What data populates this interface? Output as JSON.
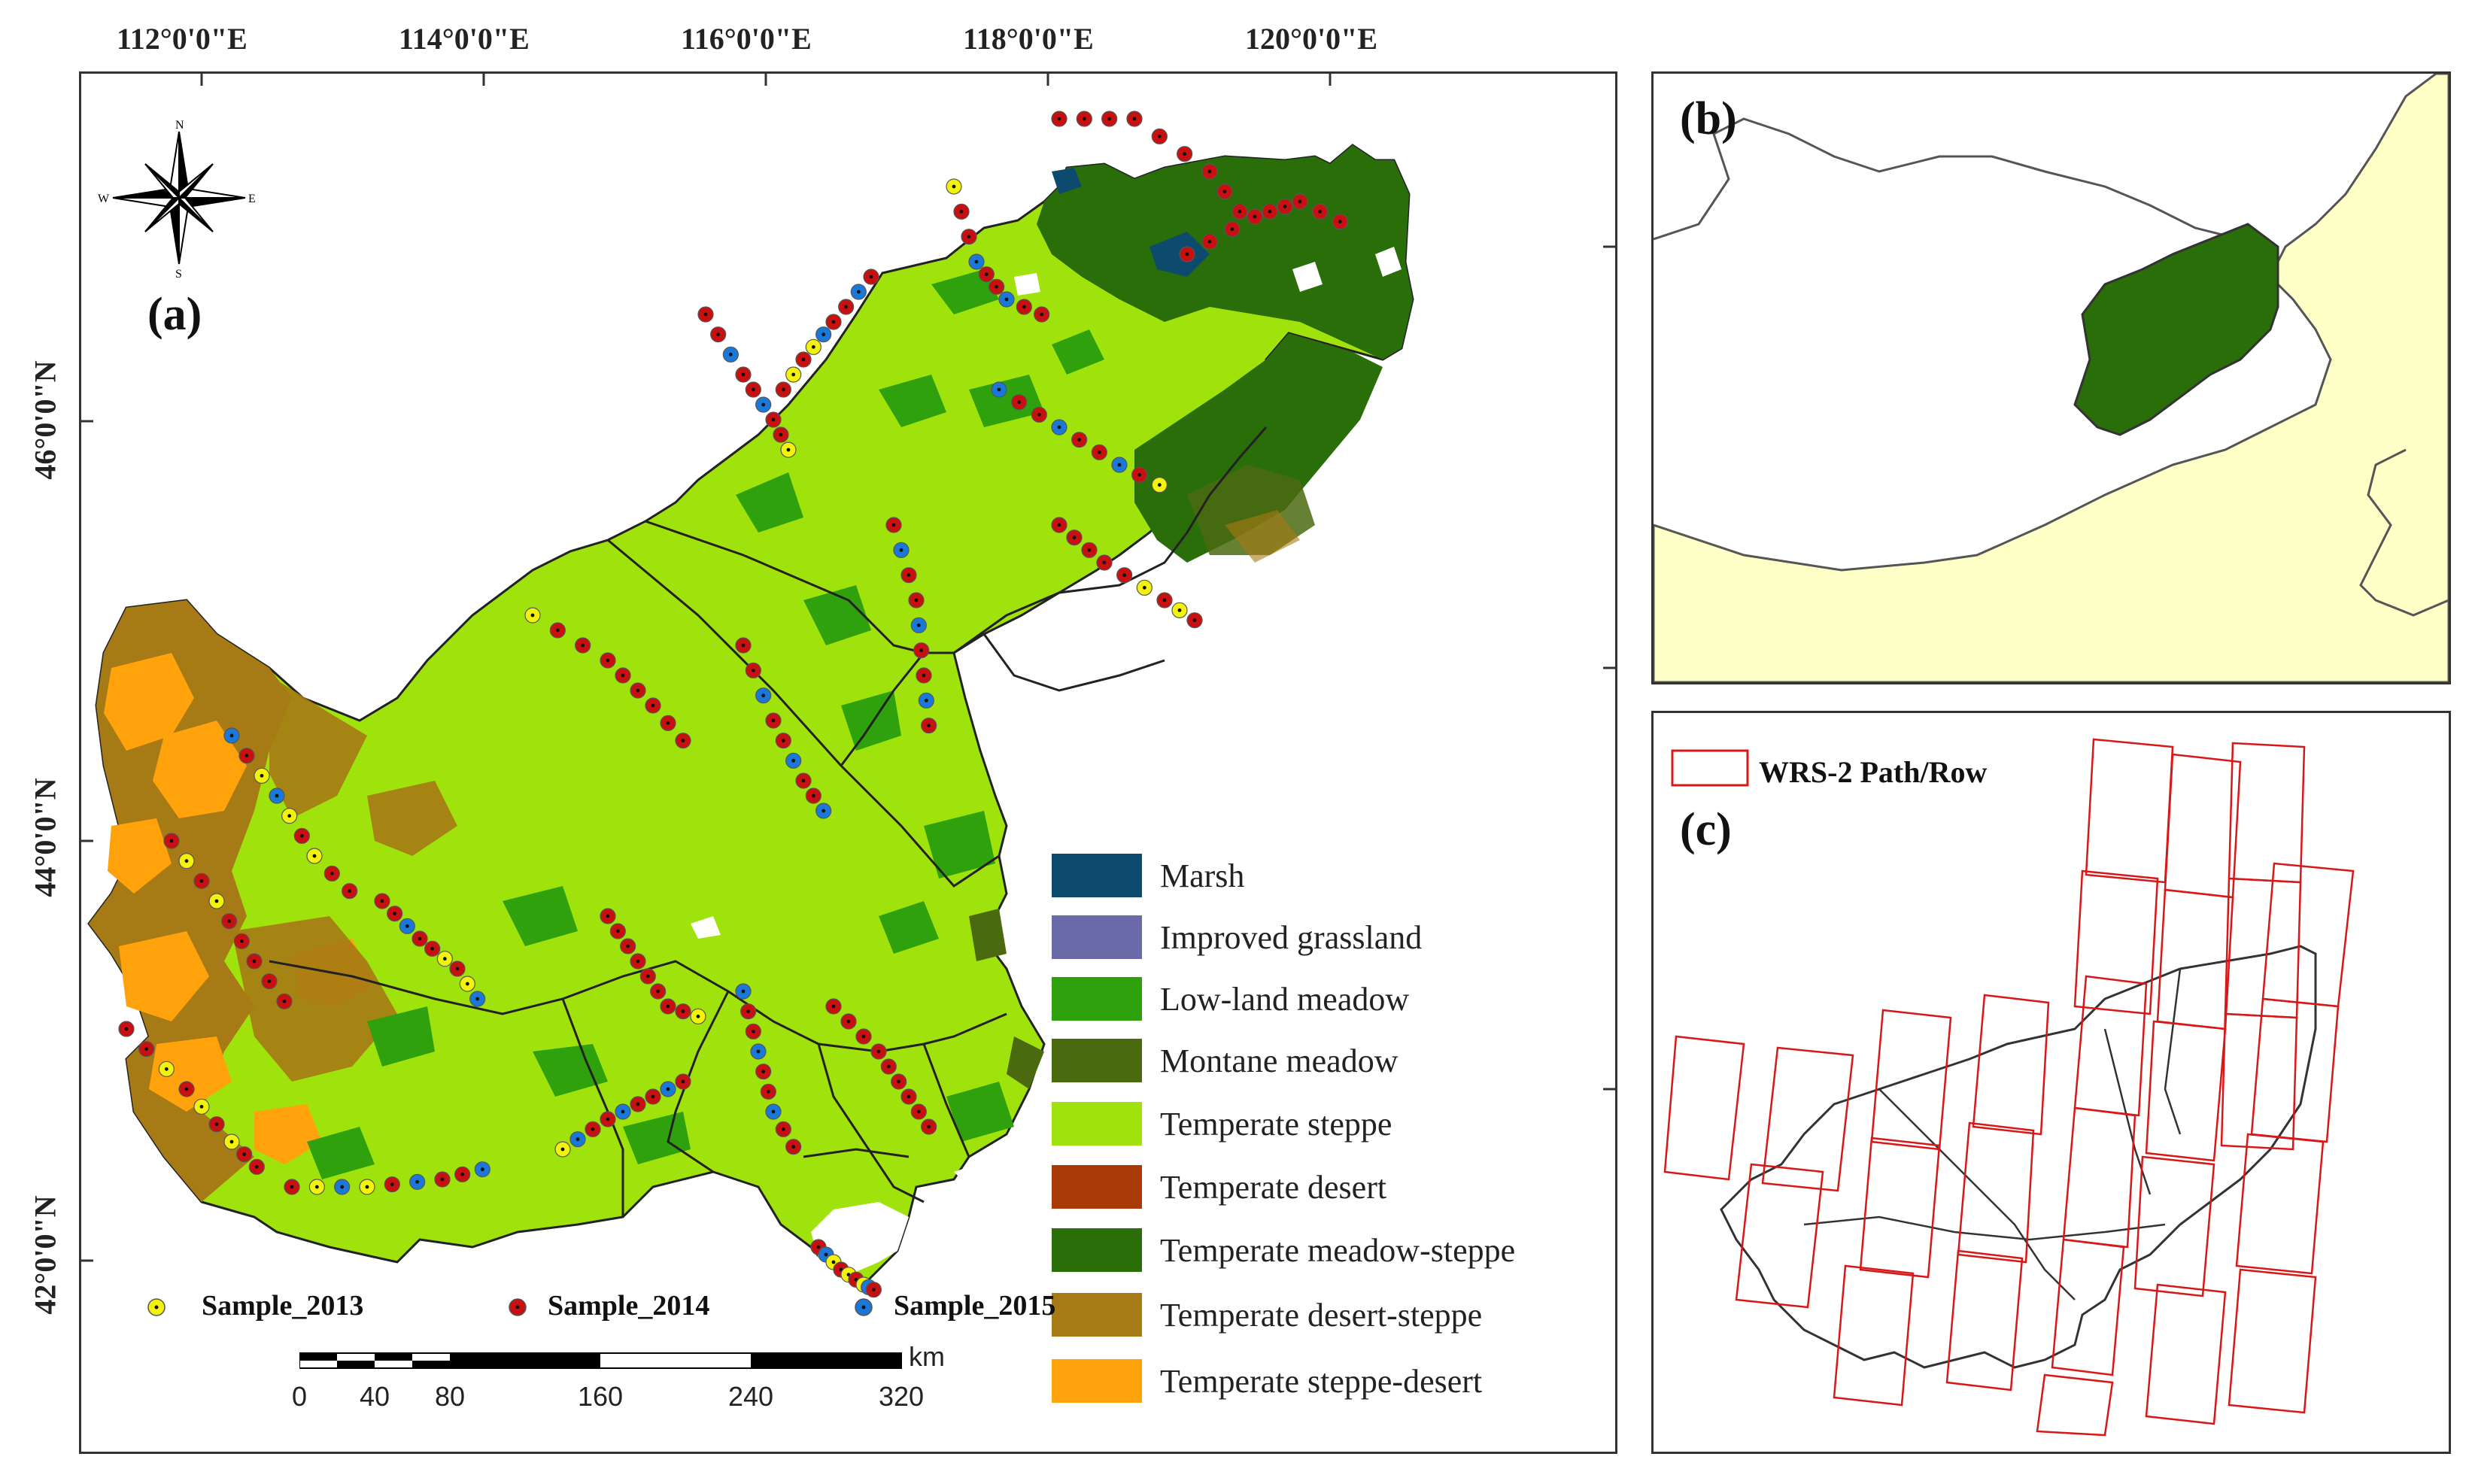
{
  "panel_a": {
    "label": "(a)",
    "lon_ticks": [
      "112°0'0\"E",
      "114°0'0\"E",
      "116°0'0\"E",
      "118°0'0\"E",
      "120°0'0\"E"
    ],
    "lat_ticks": [
      "46°0'0\"N",
      "44°0'0\"N",
      "42°0'0\"N"
    ],
    "compass": {
      "n": "N",
      "s": "S",
      "e": "E",
      "w": "W"
    },
    "legend": [
      {
        "label": "Marsh",
        "color": "#0c4a6e"
      },
      {
        "label": "Improved grassland",
        "color": "#6a6aa8"
      },
      {
        "label": "Low-land meadow",
        "color": "#2ea10c"
      },
      {
        "label": "Montane meadow",
        "color": "#4b6a10"
      },
      {
        "label": "Temperate steppe",
        "color": "#a0e20c"
      },
      {
        "label": "Temperate desert",
        "color": "#a83a08"
      },
      {
        "label": "Temperate meadow-steppe",
        "color": "#2a6e0a"
      },
      {
        "label": "Temperate desert-steppe",
        "color": "#a67a14"
      },
      {
        "label": "Temperate steppe-desert",
        "color": "#ffa20c"
      }
    ],
    "samples": [
      {
        "label": "Sample_2013",
        "color": "#f2f20a"
      },
      {
        "label": "Sample_2014",
        "color": "#c81010"
      },
      {
        "label": "Sample_2015",
        "color": "#1a78d8"
      }
    ],
    "scale": {
      "unit": "km",
      "ticks": [
        "0",
        "40",
        "80",
        "160",
        "240",
        "320"
      ]
    }
  },
  "panel_b": {
    "label": "(b)",
    "colors": {
      "land": "#ffffc8",
      "study_area": "#2a6e0a"
    }
  },
  "panel_c": {
    "label": "(c)",
    "legend_label": "WRS-2 Path/Row",
    "colors": {
      "path_row": "#d81818"
    }
  }
}
